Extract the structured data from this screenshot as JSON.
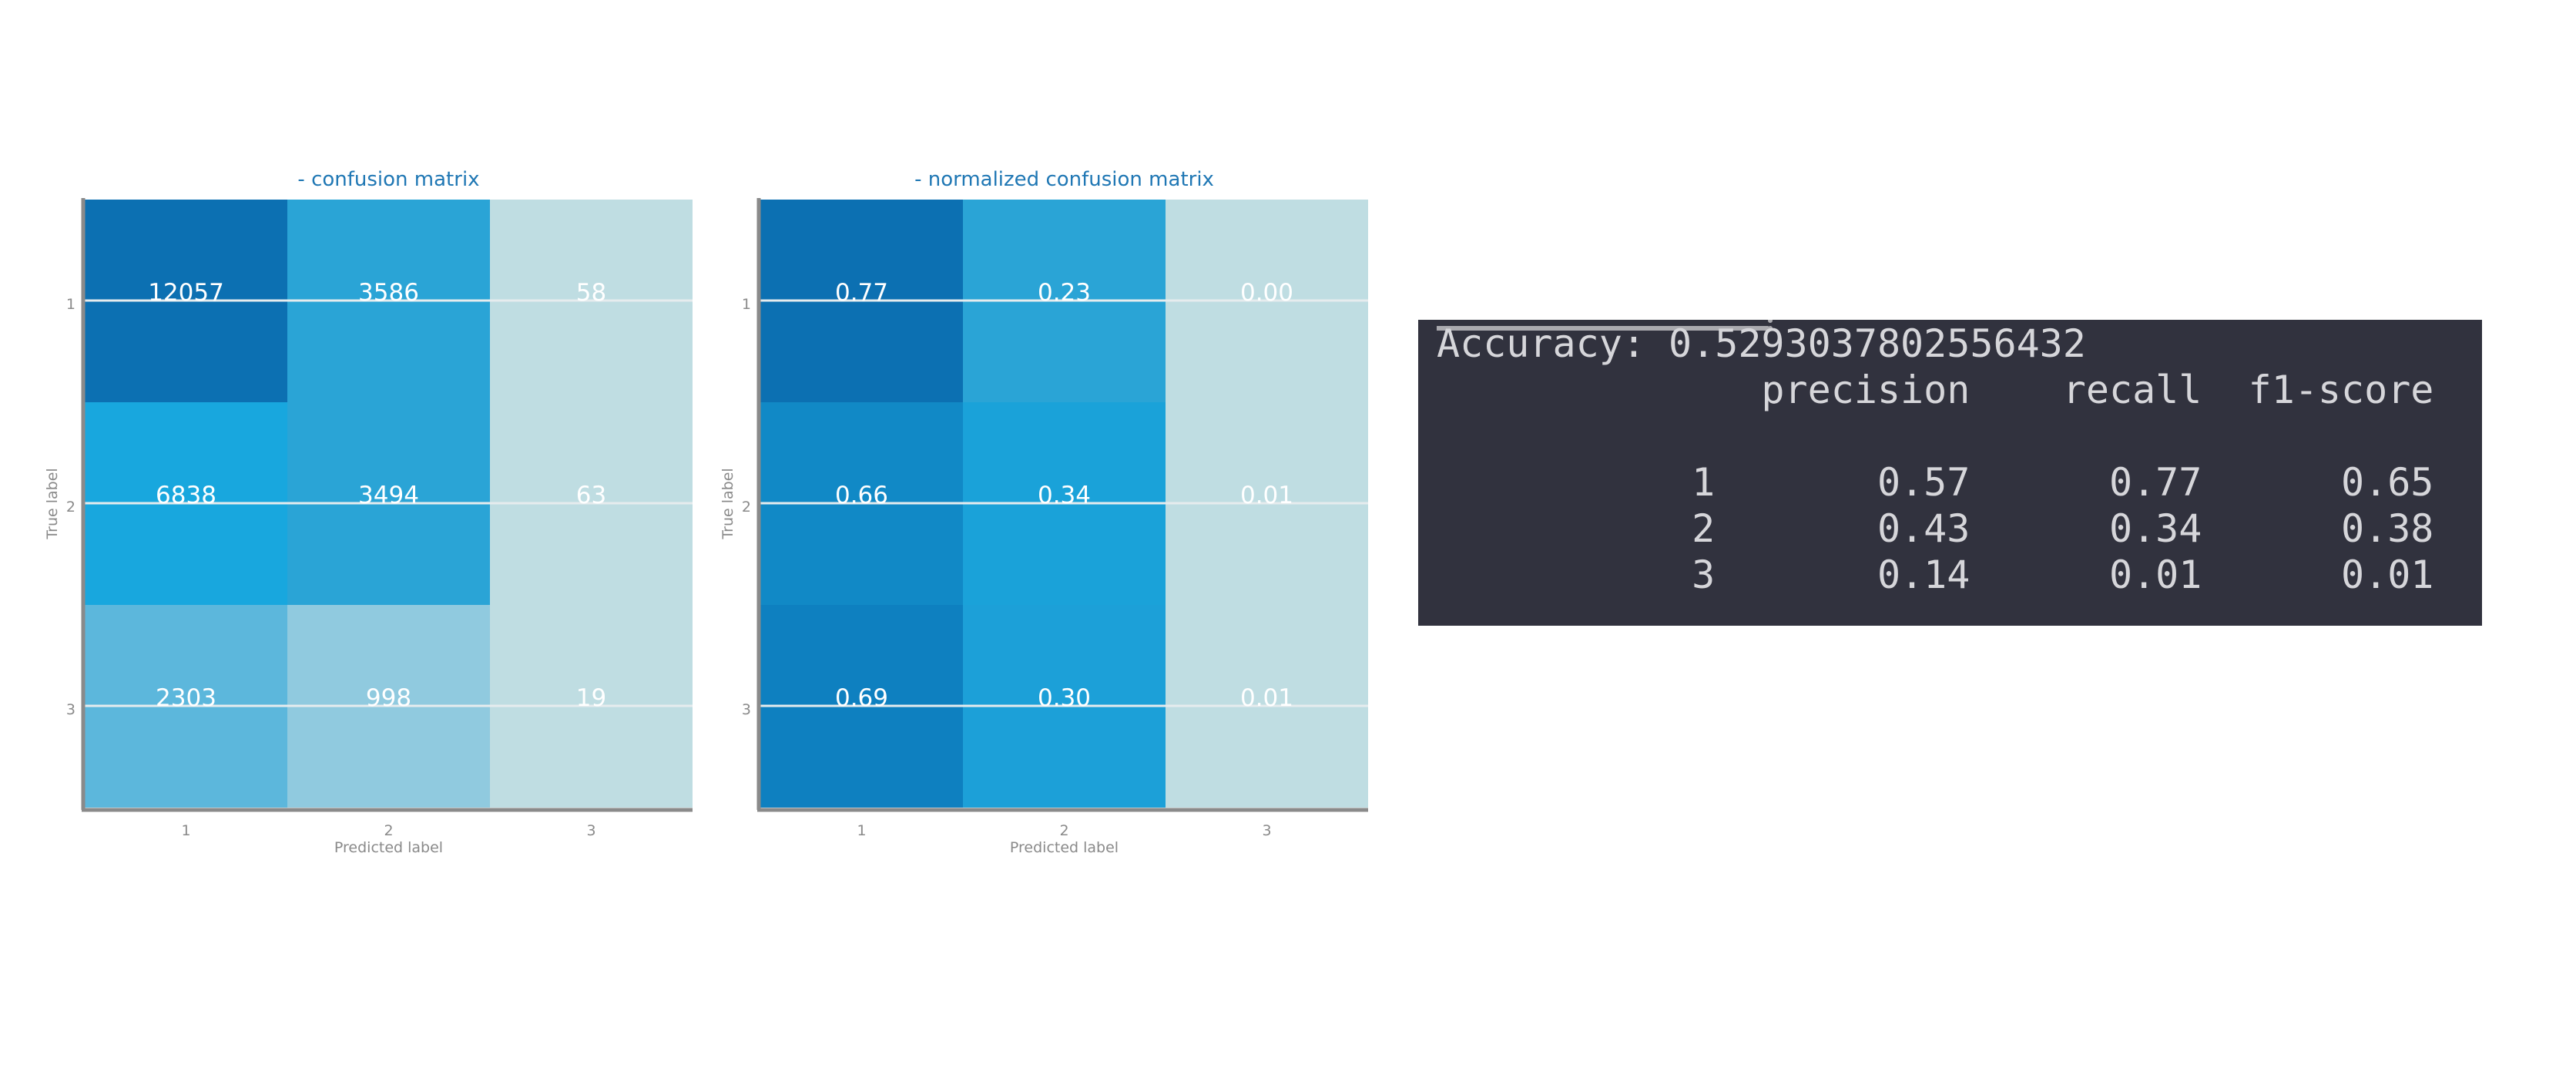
{
  "figure": {
    "left_title": "- confusion matrix",
    "right_title": "- normalized confusion matrix",
    "title_color": "#1f77b4"
  },
  "chart_data": [
    {
      "type": "heatmap",
      "title": "- confusion matrix",
      "xlabel": "Predicted label",
      "ylabel": "True label",
      "x_categories": [
        "1",
        "2",
        "3"
      ],
      "y_categories": [
        "1",
        "2",
        "3"
      ],
      "values": [
        [
          12057,
          3586,
          58
        ],
        [
          6838,
          3494,
          63
        ],
        [
          2303,
          998,
          19
        ]
      ],
      "labels": [
        [
          "12057",
          "3586",
          "58"
        ],
        [
          "6838",
          "3494",
          "63"
        ],
        [
          "2303",
          "998",
          "19"
        ]
      ],
      "cell_colors": [
        [
          "#0c70b2",
          "#2aa4d6",
          "#bfdde2"
        ],
        [
          "#18a7de",
          "#2aa4d6",
          "#bfdde2"
        ],
        [
          "#5cb7dc",
          "#90cadf",
          "#bfdde2"
        ]
      ],
      "grid": true
    },
    {
      "type": "heatmap",
      "title": "- normalized confusion matrix",
      "xlabel": "Predicted label",
      "ylabel": "True label",
      "x_categories": [
        "1",
        "2",
        "3"
      ],
      "y_categories": [
        "1",
        "2",
        "3"
      ],
      "values": [
        [
          0.77,
          0.23,
          0.0
        ],
        [
          0.66,
          0.34,
          0.01
        ],
        [
          0.69,
          0.3,
          0.01
        ]
      ],
      "labels": [
        [
          "0.77",
          "0.23",
          "0.00"
        ],
        [
          "0.66",
          "0.34",
          "0.01"
        ],
        [
          "0.69",
          "0.30",
          "0.01"
        ]
      ],
      "cell_colors": [
        [
          "#0c70b2",
          "#2aa4d6",
          "#bfdde2"
        ],
        [
          "#1189c6",
          "#1aa2d9",
          "#bfdde2"
        ],
        [
          "#0e80c0",
          "#1ca0d8",
          "#bfdde2"
        ]
      ],
      "grid": true
    }
  ],
  "report": {
    "accuracy_line": "Accuracy: 0.5293037802556432",
    "header_line": "              precision    recall  f1-score",
    "row1": "           1       0.57      0.77      0.65",
    "row2": "           2       0.43      0.34      0.38",
    "row3": "           3       0.14      0.01      0.01"
  }
}
